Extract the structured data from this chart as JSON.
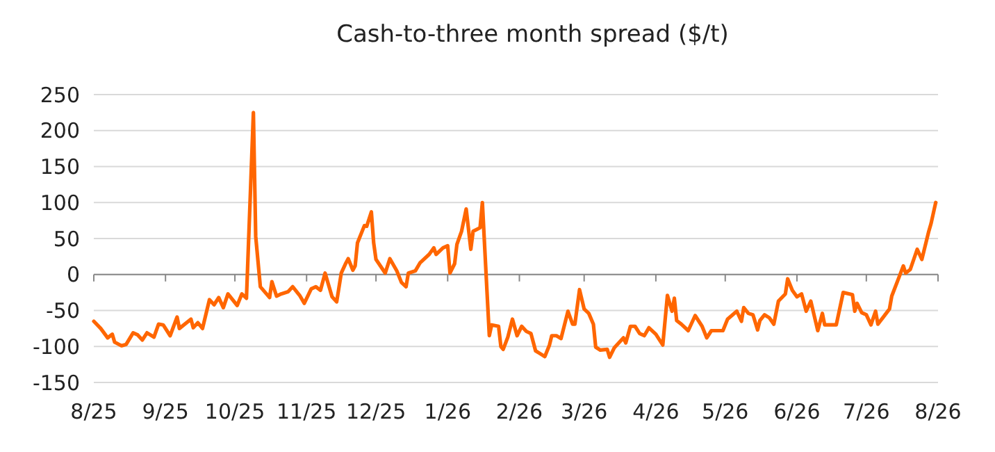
{
  "chart_data": {
    "type": "line",
    "title": "Cash-to-three month spread ($/t)",
    "x": [
      "2025-08-01",
      "2025-08-04",
      "2025-08-07",
      "2025-08-09",
      "2025-08-10",
      "2025-08-13",
      "2025-08-15",
      "2025-08-18",
      "2025-08-20",
      "2025-08-22",
      "2025-08-24",
      "2025-08-27",
      "2025-08-29",
      "2025-08-31",
      "2025-09-03",
      "2025-09-06",
      "2025-09-07",
      "2025-09-12",
      "2025-09-13",
      "2025-09-15",
      "2025-09-17",
      "2025-09-20",
      "2025-09-22",
      "2025-09-24",
      "2025-09-26",
      "2025-09-28",
      "2025-10-02",
      "2025-10-04",
      "2025-10-06",
      "2025-10-09",
      "2025-10-10",
      "2025-10-12",
      "2025-10-16",
      "2025-10-17",
      "2025-10-19",
      "2025-10-21",
      "2025-10-24",
      "2025-10-26",
      "2025-10-29",
      "2025-10-31",
      "2025-11-03",
      "2025-11-05",
      "2025-11-07",
      "2025-11-09",
      "2025-11-12",
      "2025-11-14",
      "2025-11-16",
      "2025-11-18",
      "2025-11-19",
      "2025-11-21",
      "2025-11-22",
      "2025-11-23",
      "2025-11-26",
      "2025-11-27",
      "2025-11-29",
      "2025-11-30",
      "2025-12-01",
      "2025-12-05",
      "2025-12-07",
      "2025-12-10",
      "2025-12-12",
      "2025-12-14",
      "2025-12-15",
      "2025-12-18",
      "2025-12-20",
      "2025-12-24",
      "2025-12-26",
      "2025-12-27",
      "2025-12-30",
      "2026-01-01",
      "2026-01-02",
      "2026-01-04",
      "2026-01-05",
      "2026-01-07",
      "2026-01-09",
      "2026-01-11",
      "2026-01-12",
      "2026-01-15",
      "2026-01-16",
      "2026-01-18",
      "2026-01-19",
      "2026-01-20",
      "2026-01-23",
      "2026-01-24",
      "2026-01-25",
      "2026-01-27",
      "2026-01-29",
      "2026-01-31",
      "2026-02-02",
      "2026-02-04",
      "2026-02-06",
      "2026-02-08",
      "2026-02-10",
      "2026-02-12",
      "2026-02-14",
      "2026-02-15",
      "2026-02-17",
      "2026-02-19",
      "2026-02-22",
      "2026-02-24",
      "2026-02-25",
      "2026-02-27",
      "2026-03-01",
      "2026-03-03",
      "2026-03-05",
      "2026-03-06",
      "2026-03-08",
      "2026-03-11",
      "2026-03-12",
      "2026-03-14",
      "2026-03-18",
      "2026-03-19",
      "2026-03-21",
      "2026-03-23",
      "2026-03-25",
      "2026-03-27",
      "2026-03-29",
      "2026-04-01",
      "2026-04-04",
      "2026-04-06",
      "2026-04-08",
      "2026-04-09",
      "2026-04-10",
      "2026-04-12",
      "2026-04-15",
      "2026-04-18",
      "2026-04-21",
      "2026-04-23",
      "2026-04-25",
      "2026-04-30",
      "2026-05-02",
      "2026-05-06",
      "2026-05-08",
      "2026-05-09",
      "2026-05-11",
      "2026-05-13",
      "2026-05-15",
      "2026-05-16",
      "2026-05-18",
      "2026-05-20",
      "2026-05-22",
      "2026-05-24",
      "2026-05-27",
      "2026-05-28",
      "2026-05-30",
      "2026-06-01",
      "2026-06-03",
      "2026-06-05",
      "2026-06-07",
      "2026-06-10",
      "2026-06-12",
      "2026-06-13",
      "2026-06-18",
      "2026-06-21",
      "2026-06-25",
      "2026-06-26",
      "2026-06-27",
      "2026-06-29",
      "2026-07-01",
      "2026-07-03",
      "2026-07-05",
      "2026-07-06",
      "2026-07-11",
      "2026-07-12",
      "2026-07-15",
      "2026-07-17",
      "2026-07-18",
      "2026-07-20",
      "2026-07-23",
      "2026-07-25",
      "2026-07-28",
      "2026-07-29",
      "2026-07-31"
    ],
    "series": [
      {
        "color": "#ff6600",
        "values": [
          -65,
          -75,
          -88,
          -83,
          -94,
          -99,
          -97,
          -81,
          -84,
          -91,
          -81,
          -87,
          -69,
          -70,
          -85,
          -59,
          -75,
          -62,
          -74,
          -67,
          -75,
          -35,
          -42,
          -32,
          -46,
          -27,
          -43,
          -27,
          -33,
          225,
          53,
          -17,
          -32,
          -10,
          -30,
          -27,
          -24,
          -17,
          -29,
          -40,
          -20,
          -17,
          -22,
          2,
          -31,
          -38,
          2,
          16,
          22,
          6,
          12,
          44,
          68,
          67,
          87,
          44,
          21,
          2,
          22,
          5,
          -11,
          -17,
          2,
          5,
          16,
          28,
          37,
          28,
          37,
          40,
          2,
          15,
          42,
          60,
          91,
          35,
          60,
          65,
          100,
          -24,
          -85,
          -70,
          -72,
          -100,
          -104,
          -87,
          -62,
          -85,
          -72,
          -79,
          -82,
          -106,
          -110,
          -114,
          -98,
          -85,
          -85,
          -89,
          -51,
          -69,
          -69,
          -21,
          -48,
          -54,
          -69,
          -101,
          -105,
          -104,
          -115,
          -102,
          -88,
          -95,
          -72,
          -72,
          -82,
          -85,
          -74,
          -83,
          -98,
          -29,
          -51,
          -33,
          -64,
          -69,
          -78,
          -57,
          -72,
          -88,
          -78,
          -78,
          -62,
          -51,
          -65,
          -46,
          -54,
          -56,
          -77,
          -64,
          -56,
          -60,
          -69,
          -37,
          -27,
          -6,
          -22,
          -31,
          -27,
          -51,
          -37,
          -78,
          -54,
          -70,
          -70,
          -25,
          -28,
          -51,
          -40,
          -53,
          -56,
          -70,
          -51,
          -69,
          -48,
          -30,
          -5,
          12,
          2,
          7,
          35,
          21,
          60,
          71,
          100
        ]
      }
    ],
    "xlim": [
      "2025-08-01",
      "2026-08-01"
    ],
    "xticks": [
      {
        "value": "2025-08-01",
        "label": "8/25"
      },
      {
        "value": "2025-09-01",
        "label": "9/25"
      },
      {
        "value": "2025-10-01",
        "label": "10/25"
      },
      {
        "value": "2025-11-01",
        "label": "11/25"
      },
      {
        "value": "2025-12-01",
        "label": "12/25"
      },
      {
        "value": "2026-01-01",
        "label": "1/26"
      },
      {
        "value": "2026-02-01",
        "label": "2/26"
      },
      {
        "value": "2026-03-01",
        "label": "3/26"
      },
      {
        "value": "2026-04-01",
        "label": "4/26"
      },
      {
        "value": "2026-05-01",
        "label": "5/26"
      },
      {
        "value": "2026-06-01",
        "label": "6/26"
      },
      {
        "value": "2026-07-01",
        "label": "7/26"
      },
      {
        "value": "2026-08-01",
        "label": "8/26"
      }
    ],
    "ylim": [
      -150,
      250
    ],
    "yticks": [
      -150,
      -100,
      -50,
      0,
      50,
      100,
      150,
      200,
      250
    ],
    "grid": "y",
    "marker": "none",
    "line_style": "solid"
  }
}
